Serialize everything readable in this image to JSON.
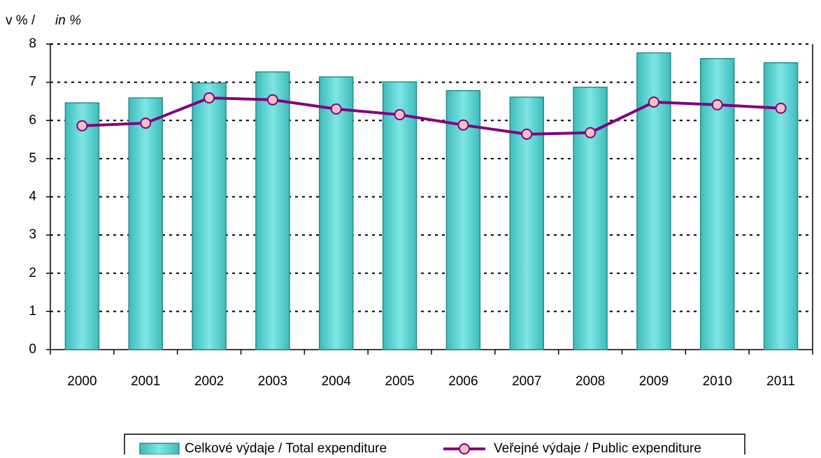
{
  "chart_data": {
    "type": "bar_line",
    "y_label": "v %  /",
    "y_label_en": "in %",
    "categories": [
      "2000",
      "2001",
      "2002",
      "2003",
      "2004",
      "2005",
      "2006",
      "2007",
      "2008",
      "2009",
      "2010",
      "2011"
    ],
    "series": [
      {
        "name": "Celkové výdaje / Total expenditure",
        "type": "bar",
        "color": "#66d8d6",
        "values": [
          6.46,
          6.59,
          6.98,
          7.27,
          7.14,
          7.01,
          6.78,
          6.61,
          6.87,
          7.77,
          7.62,
          7.51
        ]
      },
      {
        "name": "Veřejné výdaje / Public expenditure",
        "type": "line",
        "color": "#800080",
        "values": [
          5.86,
          5.93,
          6.59,
          6.54,
          6.3,
          6.15,
          5.88,
          5.64,
          5.68,
          6.48,
          6.41,
          6.32
        ]
      }
    ],
    "ylim": [
      0,
      8
    ],
    "yticks": [
      0,
      1,
      2,
      3,
      4,
      5,
      6,
      7,
      8
    ],
    "grid": true
  }
}
